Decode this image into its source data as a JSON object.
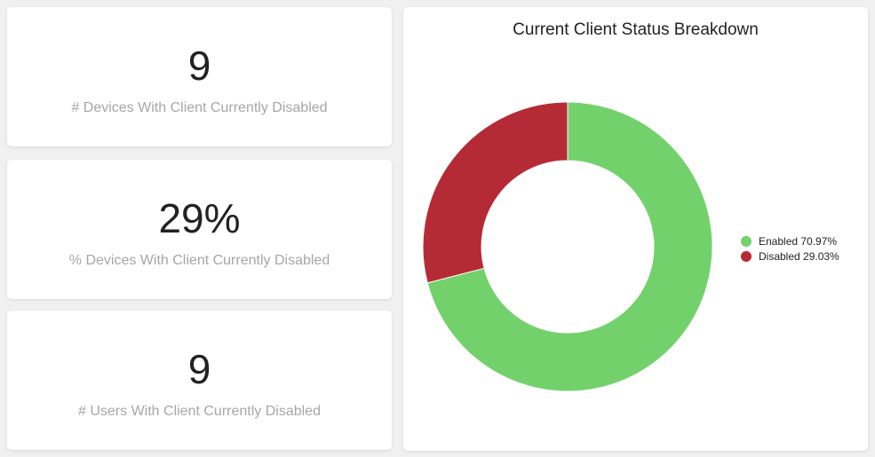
{
  "stats": [
    {
      "value": "9",
      "label": "# Devices With Client Currently Disabled"
    },
    {
      "value": "29%",
      "label": "% Devices With Client Currently Disabled"
    },
    {
      "value": "9",
      "label": "# Users With Client Currently Disabled"
    }
  ],
  "chart": {
    "title": "Current Client Status Breakdown",
    "legend": [
      {
        "label": "Enabled 70.97%",
        "color": "#73d16b"
      },
      {
        "label": "Disabled 29.03%",
        "color": "#b52b35"
      }
    ]
  },
  "chart_data": {
    "type": "pie",
    "title": "Current Client Status Breakdown",
    "donut": true,
    "legend_position": "right",
    "categories": [
      "Enabled",
      "Disabled"
    ],
    "values": [
      70.97,
      29.03
    ],
    "unit": "%",
    "colors": [
      "#73d16b",
      "#b52b35"
    ]
  }
}
